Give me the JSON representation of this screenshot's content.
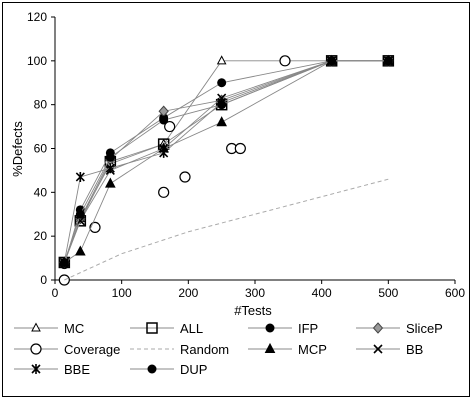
{
  "chart_data": {
    "type": "line",
    "xlabel": "#Tests",
    "ylabel": "%Defects",
    "xlim": [
      0,
      600
    ],
    "ylim": [
      0,
      120
    ],
    "xticks": [
      0,
      100,
      200,
      300,
      400,
      500,
      600
    ],
    "yticks": [
      0,
      20,
      40,
      60,
      80,
      100,
      120
    ],
    "grid": false,
    "legend_position": "bottom",
    "series": [
      {
        "name": "MC",
        "marker": "triangle-open",
        "points": [
          [
            14,
            8
          ],
          [
            38,
            28
          ],
          [
            83,
            53
          ],
          [
            163,
            62
          ],
          [
            250,
            100
          ],
          [
            415,
            100
          ],
          [
            500,
            100
          ]
        ]
      },
      {
        "name": "ALL",
        "marker": "square-open",
        "points": [
          [
            14,
            8
          ],
          [
            38,
            27
          ],
          [
            83,
            54
          ],
          [
            163,
            62
          ],
          [
            250,
            80
          ],
          [
            415,
            100
          ],
          [
            500,
            100
          ]
        ]
      },
      {
        "name": "IFP",
        "marker": "circle-filled",
        "points": [
          [
            14,
            7
          ],
          [
            38,
            32
          ],
          [
            83,
            58
          ],
          [
            163,
            74
          ],
          [
            250,
            90
          ],
          [
            415,
            100
          ],
          [
            500,
            100
          ]
        ]
      },
      {
        "name": "SliceP",
        "marker": "diamond",
        "points": [
          [
            14,
            8
          ],
          [
            38,
            28
          ],
          [
            83,
            55
          ],
          [
            163,
            77
          ],
          [
            250,
            82
          ],
          [
            415,
            100
          ],
          [
            500,
            100
          ]
        ]
      },
      {
        "name": "Coverage",
        "marker": "circle-open",
        "points": [
          [
            14,
            0
          ],
          [
            60,
            24
          ],
          [
            163,
            40
          ],
          [
            172,
            70
          ],
          [
            195,
            47
          ],
          [
            265,
            60
          ],
          [
            278,
            60
          ],
          [
            345,
            100
          ]
        ]
      },
      {
        "name": "Random",
        "marker": "none",
        "points": [
          [
            14,
            0
          ],
          [
            100,
            12
          ],
          [
            200,
            22
          ],
          [
            300,
            30
          ],
          [
            400,
            38
          ],
          [
            500,
            46
          ]
        ]
      },
      {
        "name": "MCP",
        "marker": "triangle-filled",
        "points": [
          [
            14,
            8
          ],
          [
            38,
            13
          ],
          [
            83,
            44
          ],
          [
            163,
            60
          ],
          [
            250,
            72
          ],
          [
            415,
            100
          ],
          [
            500,
            100
          ]
        ]
      },
      {
        "name": "BB",
        "marker": "x",
        "points": [
          [
            14,
            8
          ],
          [
            38,
            27
          ],
          [
            83,
            50
          ],
          [
            163,
            60
          ],
          [
            250,
            83
          ],
          [
            415,
            100
          ],
          [
            500,
            100
          ]
        ]
      },
      {
        "name": "BBE",
        "marker": "asterisk",
        "points": [
          [
            14,
            8
          ],
          [
            38,
            47
          ],
          [
            83,
            51
          ],
          [
            163,
            58
          ],
          [
            250,
            81
          ],
          [
            415,
            100
          ],
          [
            500,
            100
          ]
        ]
      },
      {
        "name": "DUP",
        "marker": "circle-filled",
        "points": [
          [
            14,
            8
          ],
          [
            38,
            30
          ],
          [
            83,
            56
          ],
          [
            163,
            73
          ],
          [
            250,
            80
          ],
          [
            415,
            100
          ],
          [
            500,
            100
          ]
        ]
      }
    ]
  }
}
